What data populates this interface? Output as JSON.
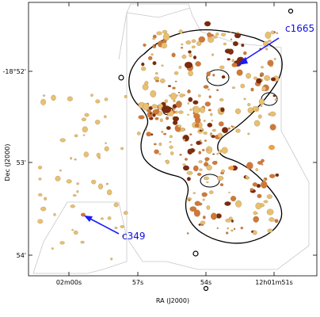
{
  "axes": {
    "xlabel": "RA (J2000)",
    "ylabel": "Dec (J2000)",
    "x_ticks": [
      "02m00s",
      "57s",
      "54s",
      "12h01m51s"
    ],
    "y_ticks": [
      "-18°52'",
      "53'",
      "54'"
    ]
  },
  "annotations": [
    {
      "label": "c1665",
      "color": "#1a1aff"
    },
    {
      "label": "c349",
      "color": "#1a1aff"
    }
  ],
  "colors": {
    "contour": "#000000",
    "footprint": "#c8c8c8",
    "clump_light": "#e8c070",
    "clump_mid": "#d07838",
    "clump_dark": "#7a2a0e",
    "arrow": "#1a1aff"
  }
}
